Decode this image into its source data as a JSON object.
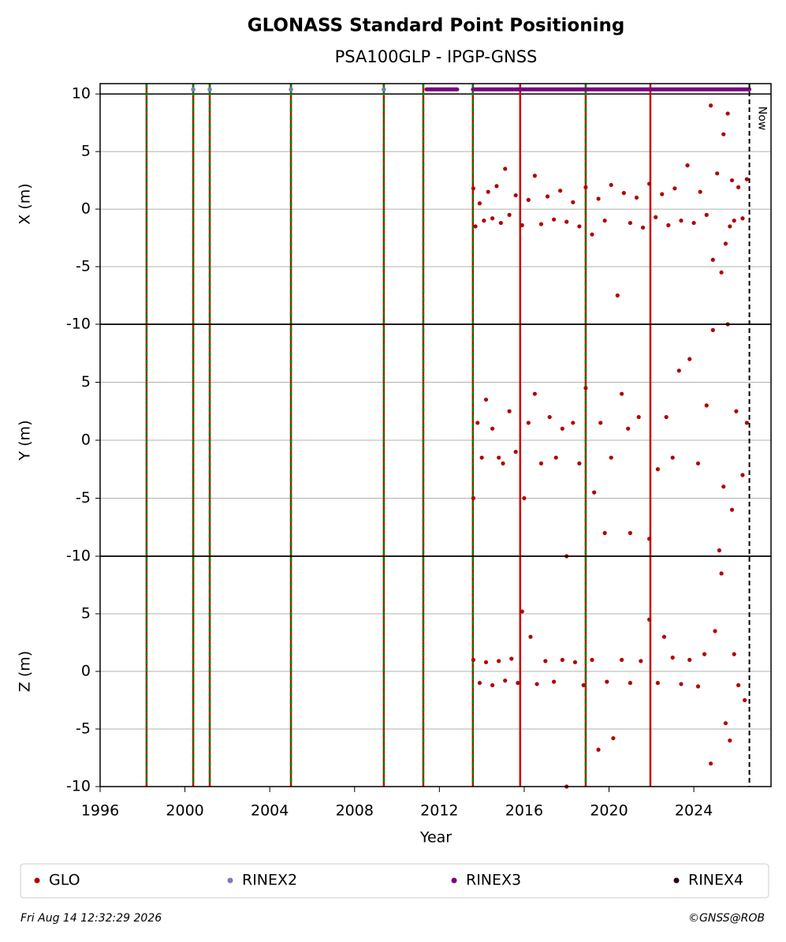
{
  "title": "GLONASS Standard Point Positioning",
  "subtitle": "PSA100GLP - IPGP-GNSS",
  "xaxis": {
    "label": "Year",
    "xlim": [
      1996,
      2027.64
    ],
    "xticks": [
      1996,
      2000,
      2004,
      2008,
      2012,
      2016,
      2020,
      2024
    ]
  },
  "chart_data": [
    {
      "type": "scatter",
      "ylabel": "X (m)",
      "ylim": [
        -10,
        10.9
      ],
      "yticks": [
        -10,
        -5,
        0,
        5,
        10
      ],
      "grid": true,
      "color": "#b30000",
      "x": [
        2013.6,
        2013.7,
        2013.9,
        2014.1,
        2014.3,
        2014.5,
        2014.7,
        2014.9,
        2015.1,
        2015.3,
        2015.6,
        2015.9,
        2016.2,
        2016.5,
        2016.8,
        2017.1,
        2017.4,
        2017.7,
        2018.0,
        2018.3,
        2018.6,
        2018.9,
        2019.2,
        2019.5,
        2019.8,
        2020.1,
        2020.4,
        2020.7,
        2021.0,
        2021.3,
        2021.6,
        2021.9,
        2022.2,
        2022.5,
        2022.8,
        2023.1,
        2023.4,
        2023.7,
        2024.0,
        2024.3,
        2024.6,
        2024.8,
        2024.9,
        2025.1,
        2025.3,
        2025.4,
        2025.5,
        2025.6,
        2025.7,
        2025.8,
        2025.9,
        2026.1,
        2026.3,
        2026.5
      ],
      "y": [
        1.8,
        -1.5,
        0.5,
        -1.0,
        1.5,
        -0.8,
        2.0,
        -1.2,
        3.5,
        -0.5,
        1.2,
        -1.4,
        0.8,
        2.9,
        -1.3,
        1.1,
        -0.9,
        1.6,
        -1.1,
        0.6,
        -1.5,
        1.9,
        -2.2,
        0.9,
        -1.0,
        2.1,
        -7.5,
        1.4,
        -1.2,
        1.0,
        -1.6,
        2.2,
        -0.7,
        1.3,
        -1.4,
        1.8,
        -1.0,
        3.8,
        -1.2,
        1.5,
        -0.5,
        9.0,
        -4.4,
        3.1,
        -5.5,
        6.5,
        -3.0,
        8.3,
        -1.5,
        2.5,
        -1.0,
        1.9,
        -0.8,
        2.6
      ]
    },
    {
      "type": "scatter",
      "ylabel": "Y (m)",
      "ylim": [
        -10,
        10
      ],
      "yticks": [
        -10,
        -5,
        0,
        5
      ],
      "grid": true,
      "color": "#b30000",
      "x": [
        2013.6,
        2013.8,
        2014.0,
        2014.2,
        2014.5,
        2014.8,
        2015.0,
        2015.3,
        2015.6,
        2016.0,
        2016.2,
        2016.5,
        2016.8,
        2017.2,
        2017.5,
        2017.8,
        2018.0,
        2018.3,
        2018.6,
        2018.9,
        2019.3,
        2019.6,
        2019.8,
        2020.1,
        2020.6,
        2020.9,
        2021.0,
        2021.4,
        2021.9,
        2022.3,
        2022.7,
        2023.0,
        2023.3,
        2023.8,
        2024.2,
        2024.6,
        2024.9,
        2025.2,
        2025.4,
        2025.6,
        2025.8,
        2026.0,
        2026.3,
        2026.5
      ],
      "y": [
        -5.0,
        1.5,
        -1.5,
        3.5,
        1.0,
        -1.5,
        -2.0,
        2.5,
        -1.0,
        -5.0,
        1.5,
        4.0,
        -2.0,
        2.0,
        -1.5,
        1.0,
        -10.0,
        1.5,
        -2.0,
        4.5,
        -4.5,
        1.5,
        -8.0,
        -1.5,
        4.0,
        1.0,
        -8.0,
        2.0,
        -8.5,
        -2.5,
        2.0,
        -1.5,
        6.0,
        7.0,
        -2.0,
        3.0,
        9.5,
        -9.5,
        -4.0,
        10.0,
        -6.0,
        2.5,
        -3.0,
        1.5
      ]
    },
    {
      "type": "scatter",
      "ylabel": "Z (m)",
      "ylim": [
        -10,
        10
      ],
      "yticks": [
        -10,
        -5,
        0,
        5
      ],
      "grid": true,
      "color": "#b30000",
      "x": [
        2013.6,
        2013.9,
        2014.2,
        2014.5,
        2014.8,
        2015.1,
        2015.4,
        2015.7,
        2015.9,
        2016.3,
        2016.6,
        2017.0,
        2017.4,
        2017.8,
        2018.0,
        2018.4,
        2018.8,
        2019.2,
        2019.5,
        2019.9,
        2020.2,
        2020.6,
        2021.0,
        2021.5,
        2021.9,
        2022.3,
        2022.6,
        2023.0,
        2023.4,
        2023.8,
        2024.2,
        2024.5,
        2024.8,
        2025.0,
        2025.3,
        2025.5,
        2025.7,
        2025.9,
        2026.1,
        2026.4
      ],
      "y": [
        1.0,
        -1.0,
        0.8,
        -1.2,
        0.9,
        -0.8,
        1.1,
        -1.0,
        5.2,
        3.0,
        -1.1,
        0.9,
        -0.9,
        1.0,
        -10.0,
        0.8,
        -1.2,
        1.0,
        -6.8,
        -0.9,
        -5.8,
        1.0,
        -1.0,
        0.9,
        4.5,
        -1.0,
        3.0,
        1.2,
        -1.1,
        1.0,
        -1.3,
        1.5,
        -8.0,
        3.5,
        8.5,
        -4.5,
        -6.0,
        1.5,
        -1.2,
        -2.5
      ]
    }
  ],
  "events": [
    {
      "x": 1998.19,
      "colors": [
        "#cc0000",
        "#008000"
      ]
    },
    {
      "x": 2000.39,
      "colors": [
        "#cc0000",
        "#008000"
      ]
    },
    {
      "x": 2001.17,
      "colors": [
        "#cc0000",
        "#008000"
      ]
    },
    {
      "x": 2005.0,
      "colors": [
        "#cc0000",
        "#008000"
      ]
    },
    {
      "x": 2009.38,
      "colors": [
        "#cc0000",
        "#008000"
      ]
    },
    {
      "x": 2011.24,
      "colors": [
        "#cc0000",
        "#008000"
      ]
    },
    {
      "x": 2013.58,
      "colors": [
        "#cc0000",
        "#008000"
      ]
    },
    {
      "x": 2015.81,
      "colors": [
        "#cc0000"
      ]
    },
    {
      "x": 2018.9,
      "colors": [
        "#cc0000",
        "#008000"
      ]
    },
    {
      "x": 2021.95,
      "colors": [
        "#cc0000"
      ]
    }
  ],
  "rinex2": {
    "y": 10.4,
    "x": [
      2000.39,
      2001.17,
      2005.0,
      2009.38
    ]
  },
  "rinex3": {
    "y": 10.4,
    "segments": [
      [
        2011.39,
        2012.84
      ],
      [
        2013.58,
        2026.62
      ]
    ]
  },
  "now": {
    "x": 2026.62,
    "label": "Now"
  },
  "legend": [
    {
      "name": "GLO",
      "color": "#b30000"
    },
    {
      "name": "RINEX2",
      "color": "#7b7bbd"
    },
    {
      "name": "RINEX3",
      "color": "#7b007b"
    },
    {
      "name": "RINEX4",
      "color": "#2a0020"
    }
  ],
  "footer": {
    "date": "Fri Aug 14 12:32:29 2026",
    "credit": "©GNSS@ROB"
  }
}
